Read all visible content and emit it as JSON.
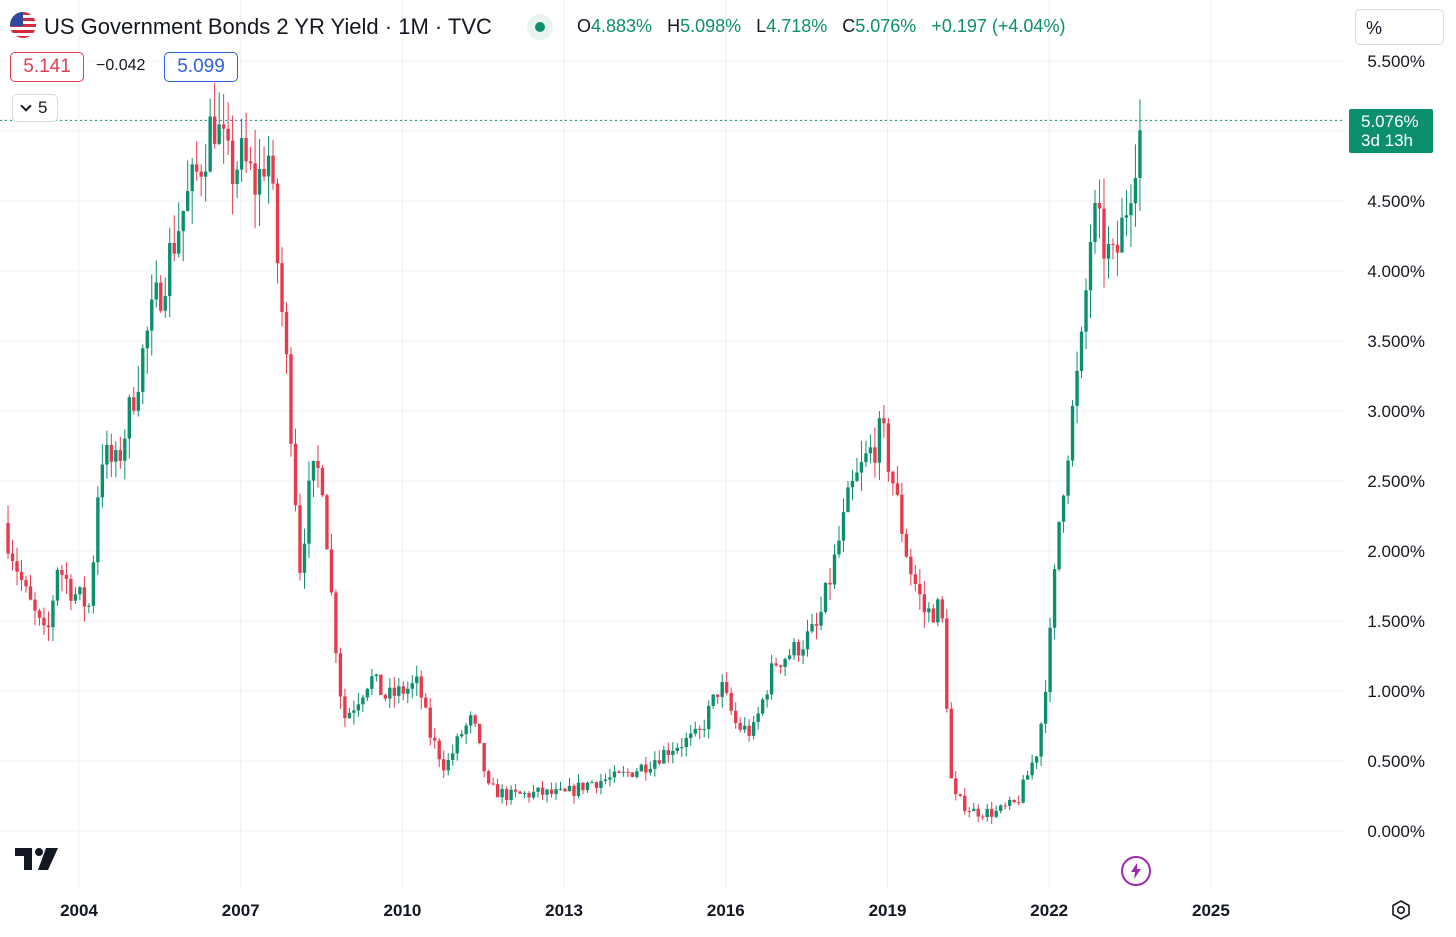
{
  "header": {
    "title": "US Government Bonds 2 YR Yield · 1M · TVC",
    "ohlc": {
      "o_label": "O",
      "o_value": "4.883%",
      "h_label": "H",
      "h_value": "5.098%",
      "l_label": "L",
      "l_value": "4.718%",
      "c_label": "C",
      "c_value": "5.076%",
      "change": "+0.197 (+4.04%)"
    }
  },
  "trade": {
    "sell": "5.141",
    "spread": "−0.042",
    "buy": "5.099"
  },
  "indicators_toggle": {
    "count": "5"
  },
  "unit_label": "%",
  "last_price": {
    "value": "5.076%",
    "countdown": "3d 13h"
  },
  "colors": {
    "up": "#0b8f6d",
    "down": "#e8394d",
    "line": "#0b8f6d",
    "grid": "#eef0f3",
    "accent": "#0b8f6d"
  },
  "icons": {
    "flag": "us-flag-icon",
    "live": "live-dot-icon",
    "logo": "tradingview-logo-icon",
    "bolt": "lightning-icon",
    "settings": "settings-gear-icon",
    "chevron": "chevron-down-icon"
  },
  "chart_data": {
    "type": "candlestick",
    "title": "US Government Bonds 2 YR Yield · 1M · TVC",
    "ylim": [
      0,
      5.5
    ],
    "ytick_labels": [
      "0.000%",
      "0.500%",
      "1.000%",
      "1.500%",
      "2.000%",
      "2.500%",
      "3.000%",
      "3.500%",
      "4.000%",
      "4.500%",
      "5.500%"
    ],
    "ytick_values": [
      0,
      0.5,
      1.0,
      1.5,
      2.0,
      2.5,
      3.0,
      3.5,
      4.0,
      4.5,
      5.5
    ],
    "xtick_labels": [
      "2004",
      "2007",
      "2010",
      "2013",
      "2016",
      "2019",
      "2022",
      "2025"
    ],
    "xtick_values": [
      2004,
      2007,
      2010,
      2013,
      2016,
      2019,
      2022,
      2025
    ],
    "xlim": [
      2002.6,
      2026.5
    ],
    "last_value": 5.076,
    "grid": true,
    "closes": [
      {
        "t": 2002.6,
        "v": 2.2
      },
      {
        "t": 2003.0,
        "v": 1.7
      },
      {
        "t": 2003.4,
        "v": 1.35
      },
      {
        "t": 2003.6,
        "v": 1.9
      },
      {
        "t": 2003.9,
        "v": 1.7
      },
      {
        "t": 2004.2,
        "v": 1.6
      },
      {
        "t": 2004.4,
        "v": 2.7
      },
      {
        "t": 2004.7,
        "v": 2.6
      },
      {
        "t": 2005.0,
        "v": 3.1
      },
      {
        "t": 2005.3,
        "v": 3.6
      },
      {
        "t": 2005.6,
        "v": 4.0
      },
      {
        "t": 2005.9,
        "v": 4.4
      },
      {
        "t": 2006.2,
        "v": 4.7
      },
      {
        "t": 2006.5,
        "v": 5.1
      },
      {
        "t": 2006.8,
        "v": 4.7
      },
      {
        "t": 2007.0,
        "v": 4.8
      },
      {
        "t": 2007.3,
        "v": 4.6
      },
      {
        "t": 2007.5,
        "v": 4.9
      },
      {
        "t": 2007.7,
        "v": 4.0
      },
      {
        "t": 2007.9,
        "v": 3.1
      },
      {
        "t": 2008.1,
        "v": 1.9
      },
      {
        "t": 2008.3,
        "v": 2.5
      },
      {
        "t": 2008.5,
        "v": 2.6
      },
      {
        "t": 2008.7,
        "v": 1.6
      },
      {
        "t": 2008.9,
        "v": 0.8
      },
      {
        "t": 2009.1,
        "v": 0.9
      },
      {
        "t": 2009.4,
        "v": 1.1
      },
      {
        "t": 2009.7,
        "v": 0.95
      },
      {
        "t": 2010.0,
        "v": 1.0
      },
      {
        "t": 2010.3,
        "v": 1.05
      },
      {
        "t": 2010.5,
        "v": 0.7
      },
      {
        "t": 2010.8,
        "v": 0.45
      },
      {
        "t": 2011.1,
        "v": 0.7
      },
      {
        "t": 2011.3,
        "v": 0.8
      },
      {
        "t": 2011.6,
        "v": 0.3
      },
      {
        "t": 2012.0,
        "v": 0.25
      },
      {
        "t": 2012.5,
        "v": 0.27
      },
      {
        "t": 2013.0,
        "v": 0.26
      },
      {
        "t": 2013.5,
        "v": 0.35
      },
      {
        "t": 2014.0,
        "v": 0.38
      },
      {
        "t": 2014.5,
        "v": 0.47
      },
      {
        "t": 2015.0,
        "v": 0.6
      },
      {
        "t": 2015.5,
        "v": 0.68
      },
      {
        "t": 2015.9,
        "v": 1.05
      },
      {
        "t": 2016.2,
        "v": 0.75
      },
      {
        "t": 2016.5,
        "v": 0.7
      },
      {
        "t": 2016.9,
        "v": 1.2
      },
      {
        "t": 2017.3,
        "v": 1.3
      },
      {
        "t": 2017.7,
        "v": 1.45
      },
      {
        "t": 2018.0,
        "v": 1.9
      },
      {
        "t": 2018.3,
        "v": 2.4
      },
      {
        "t": 2018.6,
        "v": 2.65
      },
      {
        "t": 2018.9,
        "v": 2.85
      },
      {
        "t": 2019.1,
        "v": 2.5
      },
      {
        "t": 2019.4,
        "v": 1.9
      },
      {
        "t": 2019.7,
        "v": 1.55
      },
      {
        "t": 2020.0,
        "v": 1.6
      },
      {
        "t": 2020.2,
        "v": 0.25
      },
      {
        "t": 2020.6,
        "v": 0.14
      },
      {
        "t": 2021.0,
        "v": 0.13
      },
      {
        "t": 2021.4,
        "v": 0.2
      },
      {
        "t": 2021.8,
        "v": 0.6
      },
      {
        "t": 2022.0,
        "v": 1.3
      },
      {
        "t": 2022.2,
        "v": 2.3
      },
      {
        "t": 2022.4,
        "v": 2.9
      },
      {
        "t": 2022.6,
        "v": 3.45
      },
      {
        "t": 2022.8,
        "v": 4.4
      },
      {
        "t": 2023.0,
        "v": 4.2
      },
      {
        "t": 2023.2,
        "v": 4.03
      },
      {
        "t": 2023.4,
        "v": 4.4
      },
      {
        "t": 2023.6,
        "v": 4.87
      },
      {
        "t": 2023.75,
        "v": 5.076
      }
    ]
  }
}
